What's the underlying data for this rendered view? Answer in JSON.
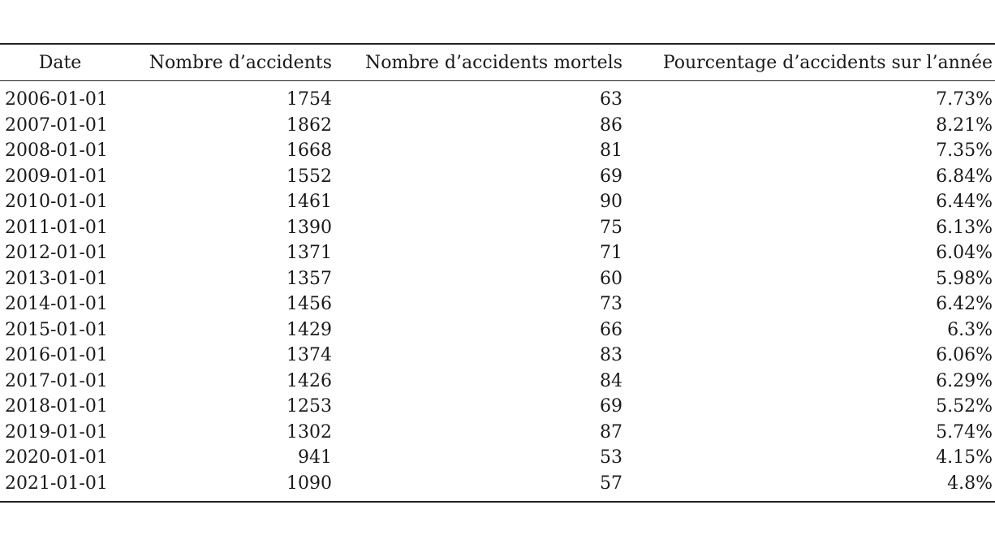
{
  "table": {
    "headers": {
      "date": "Date",
      "accidents": "Nombre d’accidents",
      "fatal": "Nombre d’accidents mortels",
      "percent": "Pourcentage d’accidents sur l’année"
    },
    "rows": [
      {
        "date": "2006-01-01",
        "accidents": "1754",
        "fatal": "63",
        "percent": "7.73%"
      },
      {
        "date": "2007-01-01",
        "accidents": "1862",
        "fatal": "86",
        "percent": "8.21%"
      },
      {
        "date": "2008-01-01",
        "accidents": "1668",
        "fatal": "81",
        "percent": "7.35%"
      },
      {
        "date": "2009-01-01",
        "accidents": "1552",
        "fatal": "69",
        "percent": "6.84%"
      },
      {
        "date": "2010-01-01",
        "accidents": "1461",
        "fatal": "90",
        "percent": "6.44%"
      },
      {
        "date": "2011-01-01",
        "accidents": "1390",
        "fatal": "75",
        "percent": "6.13%"
      },
      {
        "date": "2012-01-01",
        "accidents": "1371",
        "fatal": "71",
        "percent": "6.04%"
      },
      {
        "date": "2013-01-01",
        "accidents": "1357",
        "fatal": "60",
        "percent": "5.98%"
      },
      {
        "date": "2014-01-01",
        "accidents": "1456",
        "fatal": "73",
        "percent": "6.42%"
      },
      {
        "date": "2015-01-01",
        "accidents": "1429",
        "fatal": "66",
        "percent": "6.3%"
      },
      {
        "date": "2016-01-01",
        "accidents": "1374",
        "fatal": "83",
        "percent": "6.06%"
      },
      {
        "date": "2017-01-01",
        "accidents": "1426",
        "fatal": "84",
        "percent": "6.29%"
      },
      {
        "date": "2018-01-01",
        "accidents": "1253",
        "fatal": "69",
        "percent": "5.52%"
      },
      {
        "date": "2019-01-01",
        "accidents": "1302",
        "fatal": "87",
        "percent": "5.74%"
      },
      {
        "date": "2020-01-01",
        "accidents": "941",
        "fatal": "53",
        "percent": "4.15%"
      },
      {
        "date": "2021-01-01",
        "accidents": "1090",
        "fatal": "57",
        "percent": "4.8%"
      }
    ]
  }
}
